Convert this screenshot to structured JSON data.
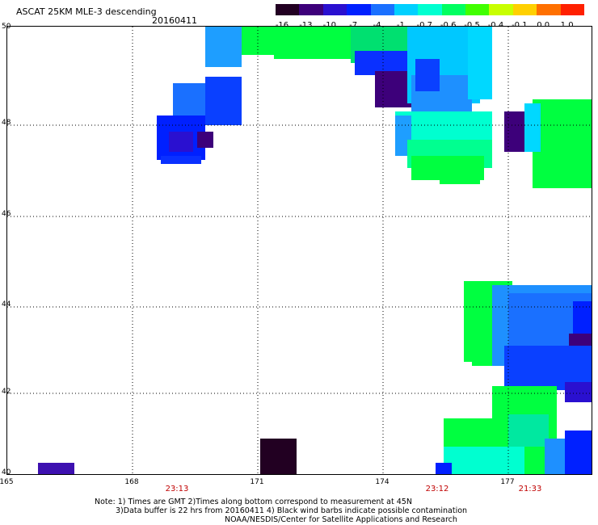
{
  "header": {
    "title": "ASCAT 25KM MLE-3 descending",
    "date": "20160411"
  },
  "colorbar": {
    "labels": [
      "-16",
      "-13",
      "-10",
      "-7",
      "-4",
      "-1",
      "-0.7",
      "-0.6",
      "-0.5",
      "-0.4",
      "-0.1",
      "0.0",
      "1.0"
    ],
    "colors": [
      "#220022",
      "#3d007a",
      "#2a10d0",
      "#0020ff",
      "#1a70ff",
      "#00d0ff",
      "#00ffd0",
      "#00ff60",
      "#40ff00",
      "#c8ff00",
      "#ffd000",
      "#ff7000",
      "#ff2000"
    ]
  },
  "map": {
    "lat_labels": [
      "50",
      "48",
      "46",
      "44",
      "42",
      "40"
    ],
    "lon_labels": [
      "165",
      "168",
      "171",
      "174",
      "177"
    ],
    "pass_times": [
      "23:13",
      "23:12",
      "21:33"
    ]
  },
  "notes": {
    "line1": "Note: 1) Times are GMT 2)Times along bottom correspond to measurement at 45N",
    "line2": "3)Data buffer is 22 hrs from 20160411 4) Black wind barbs indicate possible contamination",
    "line3": "NOAA/NESDIS/Center for Satellite Applications and Research"
  }
}
